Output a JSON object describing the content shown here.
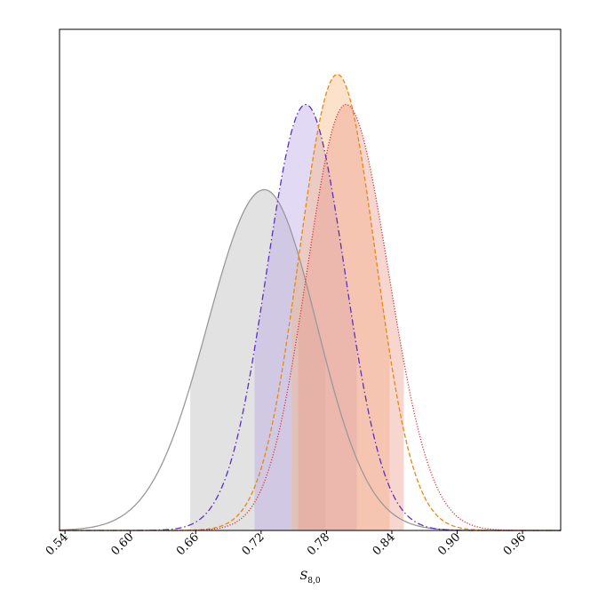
{
  "chart_data": {
    "type": "area",
    "title": "",
    "xlabel": "S_{8,0}",
    "xlabel_main": "S",
    "xlabel_sub": "8,0",
    "ylabel": "",
    "xlim": [
      0.535,
      0.995
    ],
    "x_ticks": [
      0.54,
      0.6,
      0.66,
      0.72,
      0.78,
      0.84,
      0.9,
      0.96
    ],
    "x_tick_labels": [
      "0.54",
      "0.60",
      "0.66",
      "0.72",
      "0.78",
      "0.84",
      "0.90",
      "0.96"
    ],
    "y_axis_visible": false,
    "grid": false,
    "legend": false,
    "series": [
      {
        "color": "#999999",
        "fill": "#bbbbbb",
        "line_style": "solid",
        "mean": 0.723,
        "sd_left": 0.052,
        "sd_right": 0.048,
        "peak": 0.68,
        "credible_interval": [
          0.655,
          0.779
        ]
      },
      {
        "color": "#5b2fc0",
        "fill": "#b9a6e6",
        "line_style": "dashdot",
        "mean": 0.761,
        "sd_left": 0.036,
        "sd_right": 0.036,
        "peak": 0.85,
        "credible_interval": [
          0.714,
          0.808
        ]
      },
      {
        "color": "#e8870c",
        "fill": "#f7b982",
        "line_style": "dashed",
        "mean": 0.79,
        "sd_left": 0.035,
        "sd_right": 0.035,
        "peak": 0.91,
        "credible_interval": [
          0.748,
          0.838
        ]
      },
      {
        "color": "#d9353a",
        "fill": "#ee9d8e",
        "line_style": "dotted",
        "mean": 0.798,
        "sd_left": 0.036,
        "sd_right": 0.039,
        "peak": 0.85,
        "credible_interval": [
          0.754,
          0.851
        ]
      }
    ]
  }
}
